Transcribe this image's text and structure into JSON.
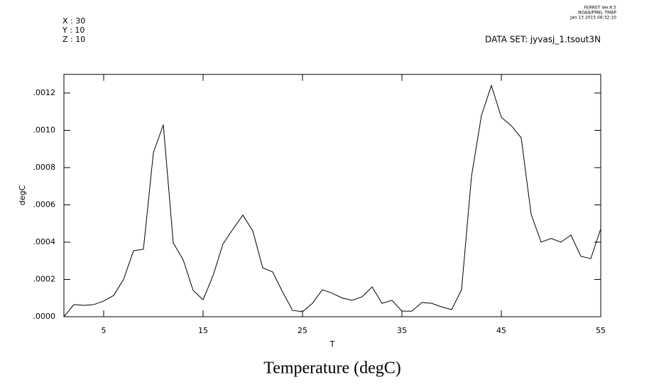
{
  "chart_data": {
    "type": "line",
    "title": "Temperature (degC)",
    "header_left": [
      "X : 30",
      "Y : 10",
      "Z : 10"
    ],
    "dataset": "DATA SET: jyvasj_1.tsout3N",
    "stamp": [
      "FERRET  Ver.6.5",
      "NOAA/PMEL TMAP",
      "Jan 13 2015 06:32:10"
    ],
    "xlabel": "T",
    "ylabel": "degC",
    "x": [
      1,
      2,
      3,
      4,
      5,
      6,
      7,
      8,
      9,
      10,
      11,
      12,
      13,
      14,
      15,
      16,
      17,
      18,
      19,
      20,
      21,
      22,
      23,
      24,
      25,
      26,
      27,
      28,
      29,
      30,
      31,
      32,
      33,
      34,
      35,
      36,
      37,
      38,
      39,
      40,
      41,
      42,
      43,
      44,
      45,
      46,
      47,
      48,
      49,
      50,
      51,
      52,
      53,
      54,
      55
    ],
    "series": [
      {
        "color": "#000000",
        "values": [
          0,
          6.5e-05,
          6.1e-05,
          6.5e-05,
          8.4e-05,
          0.000114,
          0.0002,
          0.000354,
          0.000362,
          0.00088,
          0.00103,
          0.000396,
          0.000305,
          0.000141,
          9.1e-05,
          0.00022,
          0.00039,
          0.00047,
          0.000545,
          0.00046,
          0.000263,
          0.00024,
          0.000133,
          3.4e-05,
          2.7e-05,
          7.2e-05,
          0.000145,
          0.000126,
          0.0001,
          8.8e-05,
          0.000107,
          0.00016,
          7.2e-05,
          8.8e-05,
          3e-05,
          3e-05,
          7.6e-05,
          7.2e-05,
          5.3e-05,
          3.8e-05,
          0.000145,
          0.000754,
          0.00108,
          0.00124,
          0.00107,
          0.001025,
          0.00096,
          0.000549,
          0.0004,
          0.00042,
          0.0004,
          0.000438,
          0.000324,
          0.000312,
          0.000472
        ]
      }
    ],
    "xlim": [
      1,
      55
    ],
    "xticks": [
      5,
      15,
      25,
      35,
      45,
      55
    ],
    "ylim": [
      0,
      0.0013
    ],
    "yticks": [
      {
        "value": 0,
        "label": ".0000"
      },
      {
        "value": 0.0002,
        "label": ".0002"
      },
      {
        "value": 0.0004,
        "label": ".0004"
      },
      {
        "value": 0.0006,
        "label": ".0006"
      },
      {
        "value": 0.0008,
        "label": ".0008"
      },
      {
        "value": 0.001,
        "label": ".0010"
      },
      {
        "value": 0.0012,
        "label": ".0012"
      }
    ]
  }
}
